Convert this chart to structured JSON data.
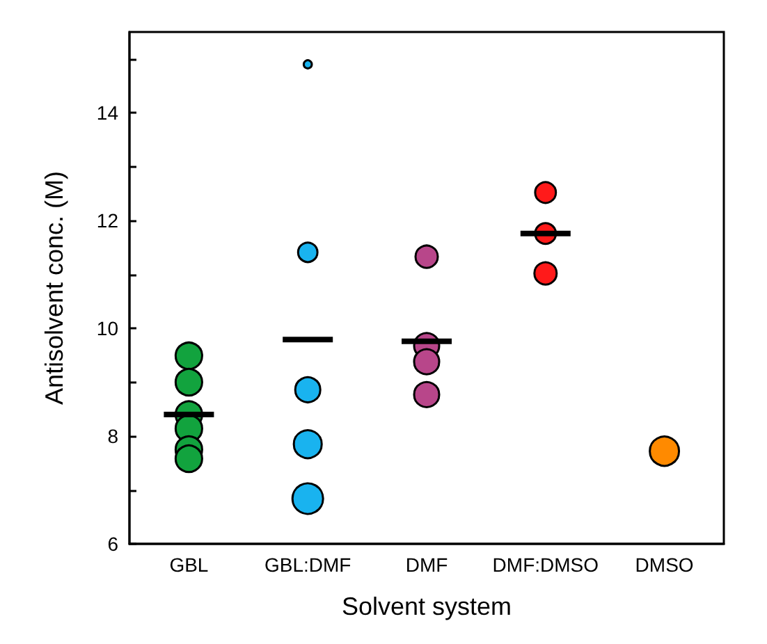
{
  "chart_data": {
    "type": "bubble",
    "xlabel": "Solvent system",
    "ylabel": "Antisolvent conc. (M)",
    "categories": [
      "GBL",
      "GBL:DMF",
      "DMF",
      "DMF:DMSO",
      "DMSO"
    ],
    "ylim": [
      6,
      15.5
    ],
    "yticks": [
      6,
      {
        "value": 7,
        "label": null
      },
      8,
      {
        "value": 9,
        "label": null
      },
      10,
      {
        "value": 11,
        "label": null
      },
      12,
      {
        "value": 13,
        "label": null
      },
      14,
      {
        "value": 15,
        "label": null
      }
    ],
    "grid": false,
    "marker": "circle",
    "series": [
      {
        "color": "#12a33e",
        "x": [
          "GBL",
          "GBL",
          "GBL",
          "GBL",
          "GBL",
          "GBL"
        ],
        "values": [
          9.49,
          9.0,
          8.4,
          8.14,
          7.75,
          7.58
        ],
        "sizes": [
          0.75,
          0.75,
          0.75,
          0.75,
          0.75,
          0.75
        ]
      },
      {
        "color": "#19b3ef",
        "x": [
          "GBL:DMF",
          "GBL:DMF",
          "GBL:DMF",
          "GBL:DMF",
          "GBL:DMF"
        ],
        "values": [
          14.9,
          11.41,
          8.86,
          7.85,
          6.84
        ],
        "sizes": [
          0.07,
          0.4,
          0.67,
          0.83,
          1
        ]
      },
      {
        "color": "#b8468a",
        "x": [
          "DMF",
          "DMF",
          "DMF",
          "DMF"
        ],
        "values": [
          11.33,
          9.68,
          9.38,
          8.77
        ],
        "sizes": [
          0.53,
          0.67,
          0.67,
          0.67
        ]
      },
      {
        "color": "#ff1a1a",
        "x": [
          "DMF:DMSO",
          "DMF:DMSO",
          "DMF:DMSO"
        ],
        "values": [
          12.52,
          11.76,
          11.02
        ],
        "sizes": [
          0.46,
          0.46,
          0.53
        ]
      },
      {
        "color": "#ff8a00",
        "x": [
          "DMSO"
        ],
        "values": [
          7.72
        ],
        "sizes": [
          0.91
        ]
      },
      {
        "type": "box",
        "color": "#000000",
        "boxes": [
          {
            "low": 8.4,
            "q1": 8.4,
            "median": 8.4,
            "q3": 8.4,
            "high": 8.4
          },
          {
            "low": 9.79,
            "q1": 9.79,
            "median": 9.79,
            "q3": 9.79,
            "high": 9.79
          },
          {
            "low": 9.76,
            "q1": 9.76,
            "median": 9.76,
            "q3": 9.76,
            "high": 9.76
          },
          {
            "low": 11.76,
            "q1": 11.76,
            "median": 11.76,
            "q3": 11.76,
            "high": 11.76
          },
          null
        ]
      }
    ]
  }
}
